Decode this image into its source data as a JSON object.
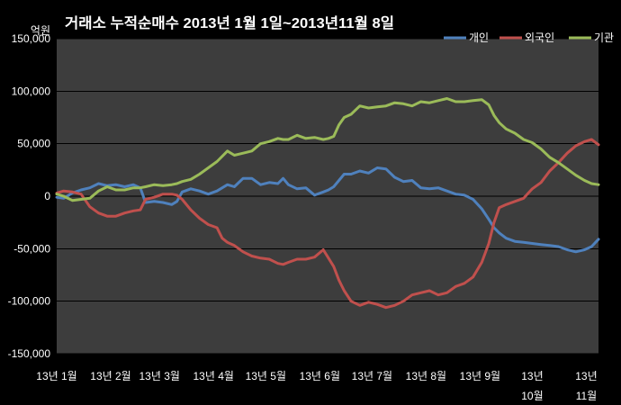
{
  "chart_data": {
    "type": "line",
    "title": "거래소 누적순매수 2013년 1월 1일~2013년11월 8일",
    "ylabel": "억원",
    "ylim": [
      -150000,
      150000
    ],
    "xlim": [
      "2013-01-01",
      "2013-11-08"
    ],
    "grid": "horizontal",
    "legend_placement": "top-right",
    "y_ticks": [
      {
        "value": 150000,
        "label": "150,000"
      },
      {
        "value": 100000,
        "label": "100,000"
      },
      {
        "value": 50000,
        "label": "50,000"
      },
      {
        "value": 0,
        "label": "0"
      },
      {
        "value": -50000,
        "label": "-50,000"
      },
      {
        "value": -100000,
        "label": "-100,000"
      },
      {
        "value": -150000,
        "label": "-150,000"
      }
    ],
    "x_ticks": [
      {
        "date": "2013-01-01",
        "lines": [
          "13년 1월"
        ]
      },
      {
        "date": "2013-02-01",
        "lines": [
          "13년 2월"
        ]
      },
      {
        "date": "2013-03-01",
        "lines": [
          "13년 3월"
        ]
      },
      {
        "date": "2013-04-01",
        "lines": [
          "13년 4월"
        ]
      },
      {
        "date": "2013-05-01",
        "lines": [
          "13년 5월"
        ]
      },
      {
        "date": "2013-06-01",
        "lines": [
          "13년 6월"
        ]
      },
      {
        "date": "2013-07-01",
        "lines": [
          "13년 7월"
        ]
      },
      {
        "date": "2013-08-01",
        "lines": [
          "13년 8월"
        ]
      },
      {
        "date": "2013-09-01",
        "lines": [
          "13년 9월"
        ]
      },
      {
        "date": "2013-10-01",
        "lines": [
          "13년",
          "10월"
        ]
      },
      {
        "date": "2013-11-01",
        "lines": [
          "13년",
          "11월"
        ]
      }
    ],
    "x": [
      "2013-01-01",
      "2013-01-05",
      "2013-01-10",
      "2013-01-15",
      "2013-01-20",
      "2013-01-25",
      "2013-01-30",
      "2013-02-04",
      "2013-02-09",
      "2013-02-14",
      "2013-02-18",
      "2013-02-21",
      "2013-02-26",
      "2013-03-03",
      "2013-03-08",
      "2013-03-11",
      "2013-03-14",
      "2013-03-19",
      "2013-03-24",
      "2013-03-29",
      "2013-04-03",
      "2013-04-06",
      "2013-04-09",
      "2013-04-13",
      "2013-04-18",
      "2013-04-23",
      "2013-04-28",
      "2013-05-03",
      "2013-05-08",
      "2013-05-11",
      "2013-05-14",
      "2013-05-19",
      "2013-05-24",
      "2013-05-29",
      "2013-06-03",
      "2013-06-06",
      "2013-06-09",
      "2013-06-12",
      "2013-06-15",
      "2013-06-19",
      "2013-06-24",
      "2013-06-29",
      "2013-07-04",
      "2013-07-09",
      "2013-07-14",
      "2013-07-19",
      "2013-07-24",
      "2013-07-29",
      "2013-08-03",
      "2013-08-08",
      "2013-08-13",
      "2013-08-18",
      "2013-08-23",
      "2013-08-28",
      "2013-09-02",
      "2013-09-06",
      "2013-09-09",
      "2013-09-12",
      "2013-09-16",
      "2013-09-21",
      "2013-09-26",
      "2013-10-01",
      "2013-10-06",
      "2013-10-11",
      "2013-10-16",
      "2013-10-21",
      "2013-10-26",
      "2013-10-31",
      "2013-11-04",
      "2013-11-08"
    ],
    "series": [
      {
        "name": "개인",
        "color": "#4F81BD",
        "values": [
          -1000,
          -2000,
          3000,
          6000,
          8000,
          12000,
          10000,
          11000,
          9000,
          11000,
          8000,
          -6000,
          -5000,
          -6000,
          -8000,
          -5000,
          4000,
          7000,
          5000,
          2000,
          5000,
          8000,
          11000,
          9000,
          17000,
          17000,
          11000,
          13000,
          12000,
          17000,
          11000,
          7000,
          8000,
          1000,
          4000,
          6000,
          9000,
          15000,
          21000,
          21000,
          24000,
          22000,
          27000,
          26000,
          18000,
          14000,
          15000,
          8000,
          7000,
          8000,
          5000,
          2000,
          1000,
          -3000,
          -12000,
          -22000,
          -30000,
          -35000,
          -40000,
          -43000,
          -44000,
          -45000,
          -46000,
          -47000,
          -48000,
          -51000,
          -53000,
          -51000,
          -48000,
          -41000
        ]
      },
      {
        "name": "외국인",
        "color": "#C0504D",
        "values": [
          3000,
          5000,
          4000,
          2000,
          -10000,
          -16000,
          -19000,
          -19000,
          -16000,
          -14000,
          -13000,
          -3000,
          -1000,
          2000,
          2000,
          1000,
          -3000,
          -13000,
          -21000,
          -27000,
          -30000,
          -40000,
          -44000,
          -47000,
          -53000,
          -57000,
          -59000,
          -60000,
          -64000,
          -65000,
          -63000,
          -60000,
          -60000,
          -58000,
          -51000,
          -59000,
          -67000,
          -80000,
          -90000,
          -100000,
          -104000,
          -101000,
          -103000,
          -106000,
          -104000,
          -100000,
          -94000,
          -92000,
          -90000,
          -94000,
          -92000,
          -86000,
          -83000,
          -77000,
          -63000,
          -45000,
          -25000,
          -11000,
          -8000,
          -5000,
          -2000,
          7000,
          13000,
          24000,
          32000,
          41000,
          48000,
          52000,
          54000,
          49000
        ]
      },
      {
        "name": "기관",
        "color": "#9BBB59",
        "values": [
          2000,
          0,
          -4000,
          -3000,
          -2000,
          5000,
          9000,
          6000,
          6000,
          8000,
          8000,
          9000,
          11000,
          10000,
          11000,
          12000,
          14000,
          16000,
          21000,
          27000,
          33000,
          38000,
          43000,
          39000,
          41000,
          43000,
          50000,
          52000,
          55000,
          54000,
          54000,
          58000,
          55000,
          56000,
          54000,
          55000,
          57000,
          68000,
          75000,
          78000,
          86000,
          84000,
          85000,
          86000,
          89000,
          88000,
          86000,
          90000,
          89000,
          91000,
          93000,
          90000,
          90000,
          91000,
          92000,
          87000,
          77000,
          70000,
          64000,
          60000,
          54000,
          51000,
          45000,
          37000,
          32000,
          26000,
          20000,
          15000,
          12000,
          11000
        ]
      }
    ]
  }
}
